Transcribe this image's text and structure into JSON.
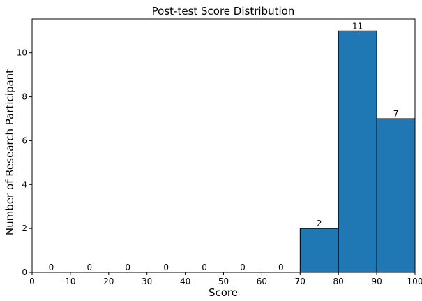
{
  "chart_data": {
    "type": "bar",
    "title": "Post-test Score Distribution",
    "xlabel": "Score",
    "ylabel": "Number of Research Participant",
    "bin_edges": [
      0,
      10,
      20,
      30,
      40,
      50,
      60,
      70,
      80,
      90,
      100
    ],
    "categories": [
      "0-10",
      "10-20",
      "20-30",
      "30-40",
      "40-50",
      "50-60",
      "60-70",
      "70-80",
      "80-90",
      "90-100"
    ],
    "values": [
      0,
      0,
      0,
      0,
      0,
      0,
      0,
      2,
      11,
      7
    ],
    "data_labels": [
      "0",
      "0",
      "0",
      "0",
      "0",
      "0",
      "0",
      "2",
      "11",
      "7"
    ],
    "xlim": [
      0,
      100
    ],
    "ylim": [
      0,
      11.55
    ],
    "x_ticks": [
      0,
      10,
      20,
      30,
      40,
      50,
      60,
      70,
      80,
      90,
      100
    ],
    "x_tick_labels": [
      "0",
      "10",
      "20",
      "30",
      "40",
      "50",
      "60",
      "70",
      "80",
      "90",
      "100"
    ],
    "y_ticks": [
      0,
      2,
      4,
      6,
      8,
      10
    ],
    "y_tick_labels": [
      "0",
      "2",
      "4",
      "6",
      "8",
      "10"
    ],
    "grid": false,
    "legend": "none",
    "bar_color": "#1f77b4",
    "edge_color": "#000000"
  }
}
